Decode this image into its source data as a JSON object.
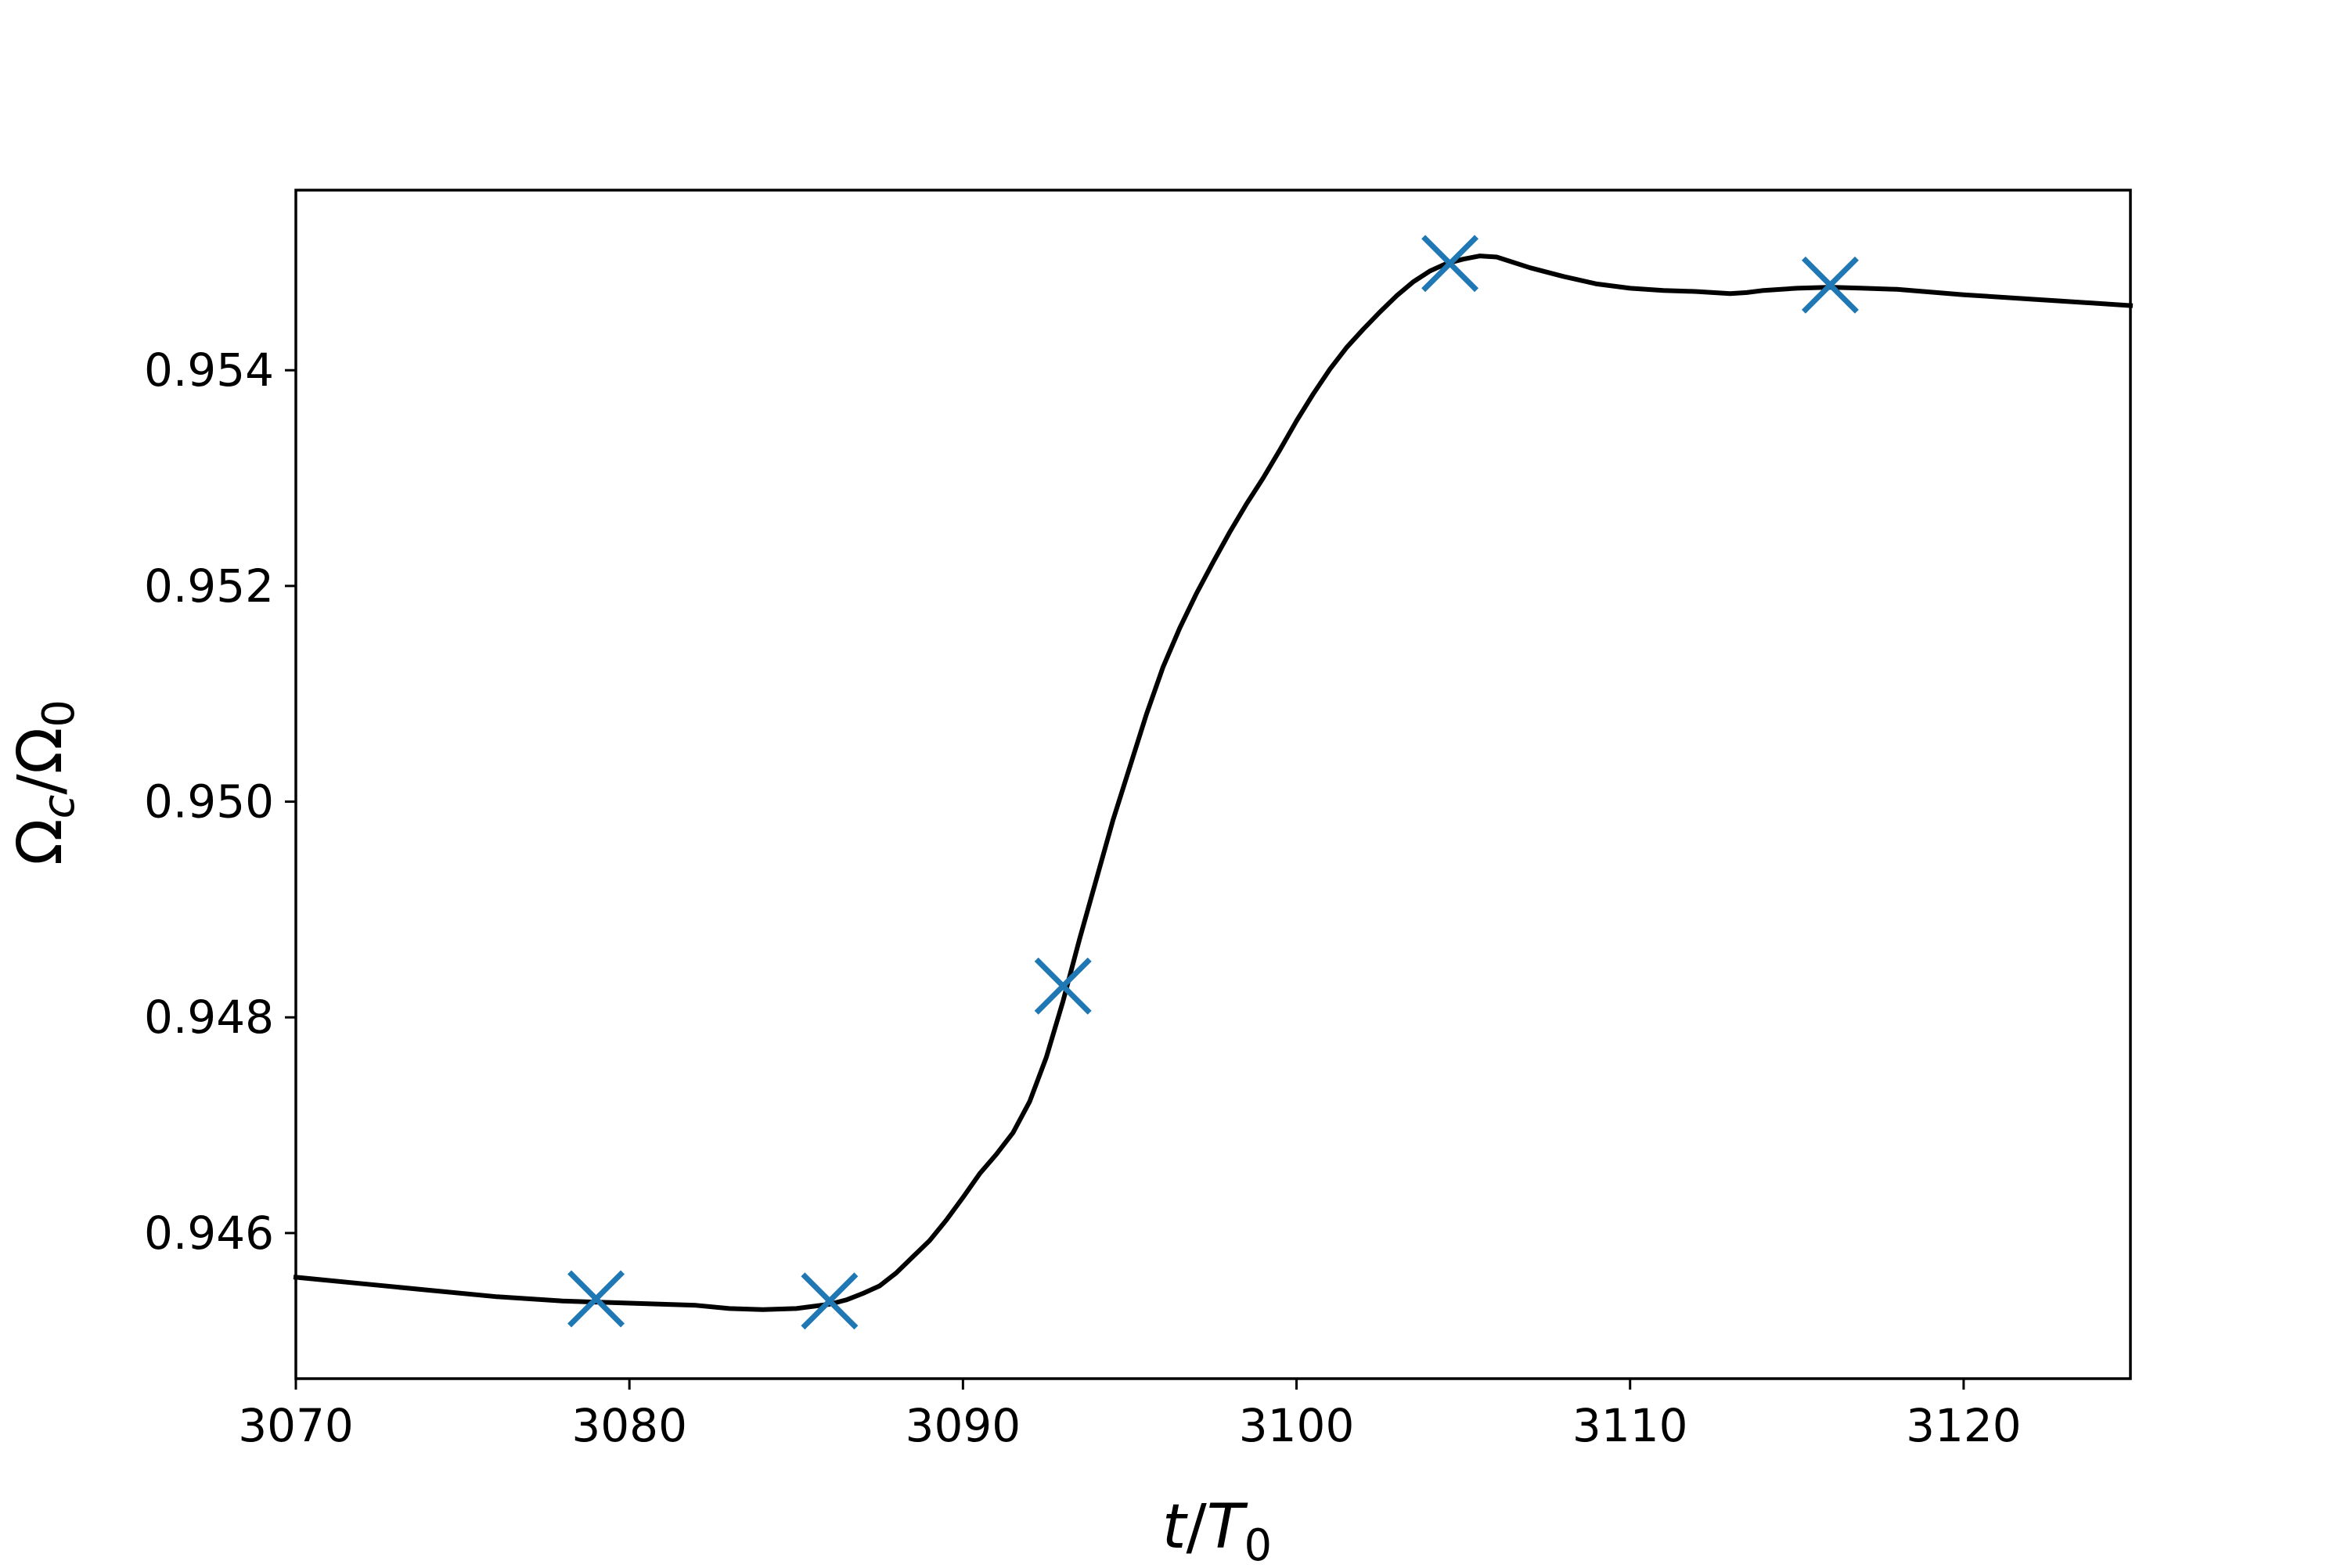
{
  "chart_data": {
    "type": "line",
    "title": "",
    "xlabel": {
      "base": "t",
      "sep": "/",
      "sym": "T",
      "sub": "0"
    },
    "ylabel": {
      "sym1": "Ω",
      "sub1": "c",
      "sep": "/",
      "sym2": "Ω",
      "sub2": "0"
    },
    "xlim": [
      3070,
      3125
    ],
    "ylim": [
      0.94465,
      0.95567
    ],
    "xticks": [
      3070,
      3080,
      3090,
      3100,
      3110,
      3120
    ],
    "xtick_labels": [
      "3070",
      "3080",
      "3090",
      "3100",
      "3110",
      "3120"
    ],
    "yticks": [
      0.946,
      0.948,
      0.95,
      0.952,
      0.954
    ],
    "ytick_labels": [
      "0.946",
      "0.948",
      "0.950",
      "0.952",
      "0.954"
    ],
    "grid": false,
    "legend": "none",
    "series": [
      {
        "kind": "line",
        "color": "#000000",
        "x": [
          3070,
          3072,
          3074,
          3076,
          3078,
          3080,
          3081,
          3082,
          3083,
          3084,
          3085,
          3086,
          3086.5,
          3087,
          3087.5,
          3088,
          3088.5,
          3089,
          3089.5,
          3090,
          3090.5,
          3091,
          3091.5,
          3092,
          3092.5,
          3093,
          3093.5,
          3094,
          3094.5,
          3095,
          3095.5,
          3096,
          3096.5,
          3097,
          3097.5,
          3098,
          3098.5,
          3099,
          3099.5,
          3100,
          3100.5,
          3101,
          3101.5,
          3102,
          3102.5,
          3103,
          3103.5,
          3104,
          3104.5,
          3105,
          3105.5,
          3106,
          3107,
          3108,
          3109,
          3110,
          3111,
          3112,
          3113,
          3113.5,
          3114,
          3115,
          3116,
          3117,
          3118,
          3120,
          3122,
          3125
        ],
        "y": [
          0.94559,
          0.94553,
          0.94547,
          0.94541,
          0.94537,
          0.94535,
          0.94534,
          0.94533,
          0.9453,
          0.94529,
          0.9453,
          0.94534,
          0.94538,
          0.94544,
          0.94551,
          0.94563,
          0.94578,
          0.94593,
          0.94612,
          0.94633,
          0.94655,
          0.94673,
          0.94693,
          0.94722,
          0.94763,
          0.94815,
          0.94873,
          0.94928,
          0.94983,
          0.95032,
          0.95081,
          0.95125,
          0.95161,
          0.95193,
          0.95222,
          0.9525,
          0.95276,
          0.953,
          0.95326,
          0.95353,
          0.95378,
          0.95401,
          0.95421,
          0.95438,
          0.95454,
          0.95469,
          0.95482,
          0.95492,
          0.95499,
          0.95503,
          0.95506,
          0.95505,
          0.95495,
          0.95487,
          0.9548,
          0.95476,
          0.95474,
          0.95473,
          0.95471,
          0.95472,
          0.95474,
          0.95476,
          0.95477,
          0.95476,
          0.95475,
          0.9547,
          0.95466,
          0.9546
        ]
      },
      {
        "kind": "marker",
        "marker": "x",
        "color": "#1f77b4",
        "x": [
          3079,
          3086,
          3093,
          3104.6,
          3116
        ],
        "y": [
          0.94539,
          0.94537,
          0.94829,
          0.95499,
          0.95479
        ]
      }
    ]
  }
}
